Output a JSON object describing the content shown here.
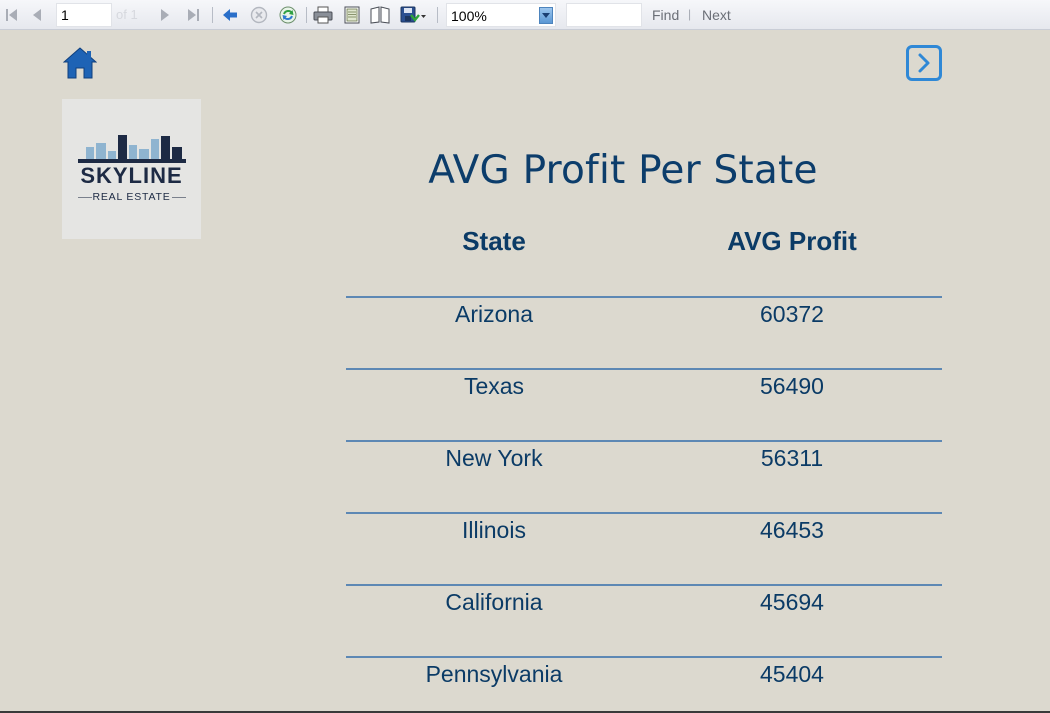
{
  "toolbar": {
    "page_number": "1",
    "page_of": "of 1",
    "zoom": "100%",
    "find_text": "",
    "find_label": "Find",
    "separator": "|",
    "next_label": "Next"
  },
  "logo": {
    "name": "SKYLINE",
    "tagline": "REAL ESTATE"
  },
  "report": {
    "title": "AVG Profit Per State",
    "columns": [
      "State",
      "AVG Profit"
    ],
    "rows": [
      {
        "state": "Arizona",
        "avg_profit": "60372"
      },
      {
        "state": "Texas",
        "avg_profit": "56490"
      },
      {
        "state": "New York",
        "avg_profit": "56311"
      },
      {
        "state": "Illinois",
        "avg_profit": "46453"
      },
      {
        "state": "California",
        "avg_profit": "45694"
      },
      {
        "state": "Pennsylvania",
        "avg_profit": "45404"
      }
    ]
  },
  "colors": {
    "background": "#dcd9cf",
    "text_primary": "#0b3b66",
    "row_rule": "#5d88b4",
    "accent_blue": "#2f88d6"
  },
  "icons": [
    "first-page-icon",
    "previous-page-icon",
    "next-page-icon",
    "last-page-icon",
    "back-to-parent-icon",
    "stop-icon",
    "refresh-icon",
    "print-icon",
    "page-setup-icon",
    "print-layout-icon",
    "export-icon",
    "home-icon",
    "next-report-icon"
  ]
}
